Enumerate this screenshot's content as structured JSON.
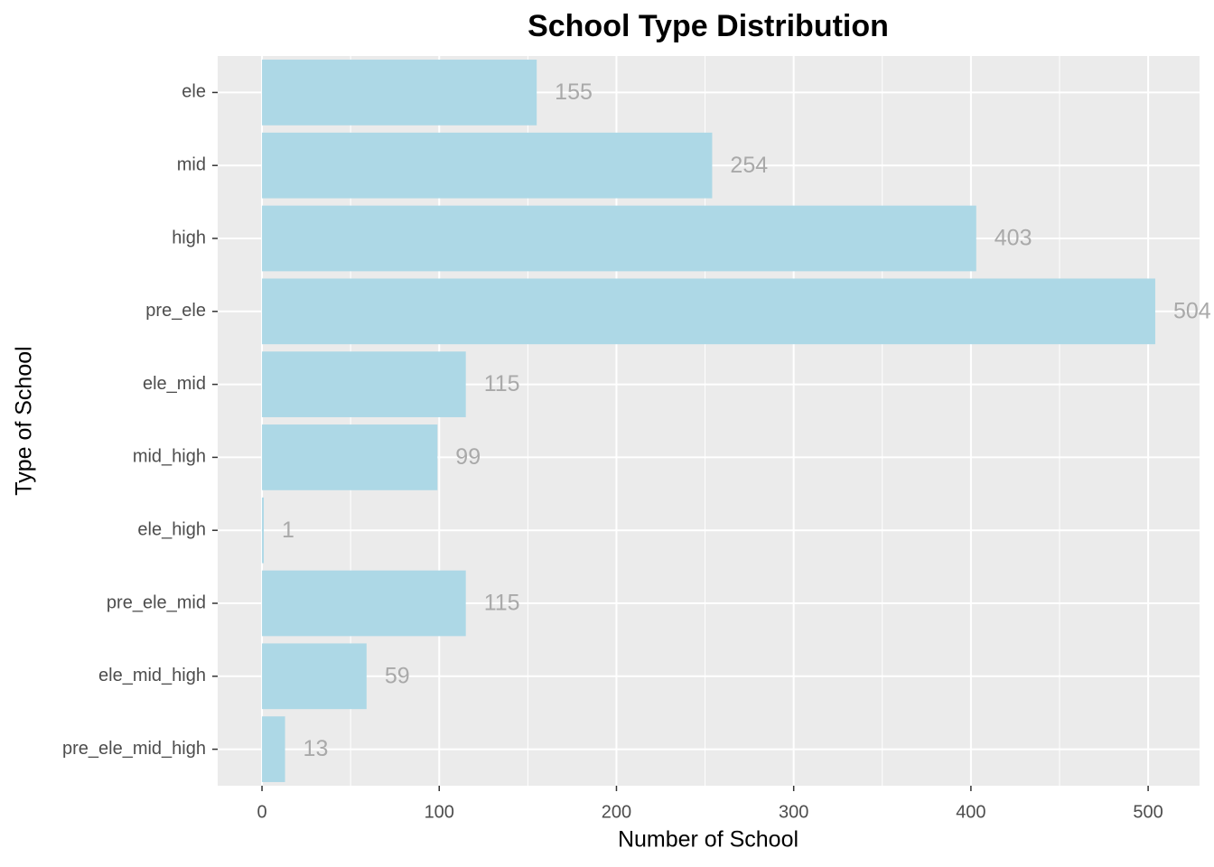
{
  "chart_data": {
    "type": "bar",
    "orientation": "horizontal",
    "title": "School Type Distribution",
    "x_label": "Number of School",
    "y_label": "Type of School",
    "categories": [
      "ele",
      "mid",
      "high",
      "pre_ele",
      "ele_mid",
      "mid_high",
      "ele_high",
      "pre_ele_mid",
      "ele_mid_high",
      "pre_ele_mid_high"
    ],
    "values": [
      155,
      254,
      403,
      504,
      115,
      99,
      1,
      115,
      59,
      13
    ],
    "color": "#add8e6",
    "label_color": "#a9a9a9",
    "xlim": [
      -25,
      529
    ],
    "xticks": [
      0,
      100,
      200,
      300,
      400,
      500
    ],
    "xticks_minor": [
      50,
      150,
      250,
      350,
      450
    ],
    "grid": true
  }
}
